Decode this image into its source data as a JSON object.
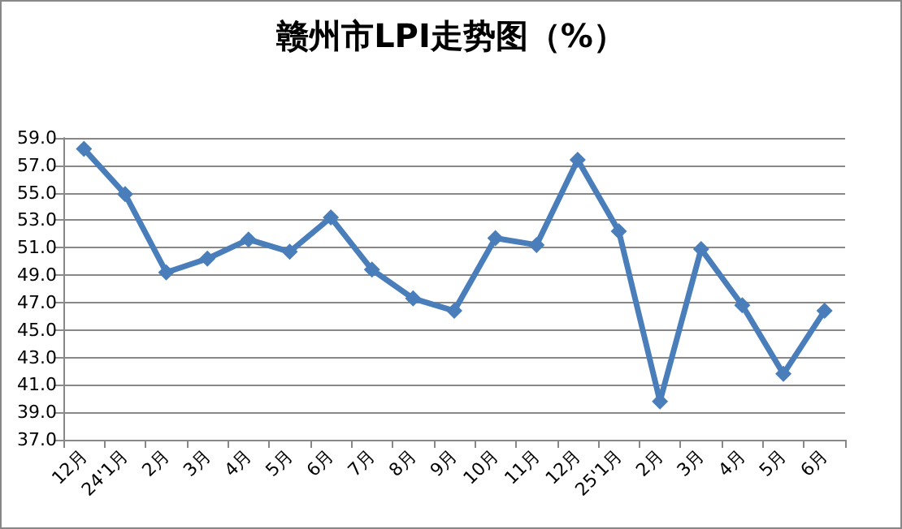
{
  "chart_data": {
    "type": "line",
    "title": "赣州市LPI走势图（%）",
    "categories": [
      "12月",
      "24'1月",
      "2月",
      "3月",
      "4月",
      "5月",
      "6月",
      "7月",
      "8月",
      "9月",
      "10月",
      "11月",
      "12月",
      "25'1月",
      "2月",
      "3月",
      "4月",
      "5月",
      "6月"
    ],
    "series": [
      {
        "color": "#4a7ebb",
        "values": [
          58.2,
          54.9,
          49.2,
          50.2,
          51.6,
          50.7,
          53.2,
          49.4,
          47.3,
          46.4,
          51.7,
          51.2,
          57.4,
          52.2,
          39.8,
          50.9,
          46.8,
          41.8,
          46.4
        ]
      }
    ],
    "ylim": [
      37,
      59
    ],
    "yticks": [
      {
        "value": 37,
        "label": "37.0"
      },
      {
        "value": 39,
        "label": "39.0"
      },
      {
        "value": 41,
        "label": "41.0"
      },
      {
        "value": 43,
        "label": "43.0"
      },
      {
        "value": 45,
        "label": "45.0"
      },
      {
        "value": 47,
        "label": "47.0"
      },
      {
        "value": 49,
        "label": "49.0"
      },
      {
        "value": 51,
        "label": "51.0"
      },
      {
        "value": 53,
        "label": "53.0"
      },
      {
        "value": 55,
        "label": "55.0"
      },
      {
        "value": 57,
        "label": "57.0"
      },
      {
        "value": 59,
        "label": "59.0"
      }
    ],
    "grid": "y",
    "marker": "diamond",
    "line_style": "solid",
    "legend": false
  }
}
